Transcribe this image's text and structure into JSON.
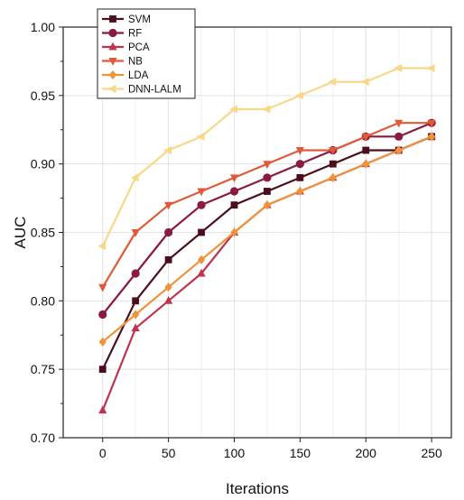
{
  "chart_data": {
    "type": "line",
    "xlabel": "Iterations",
    "ylabel": "AUC",
    "xlim": [
      -30,
      265
    ],
    "ylim": [
      0.7,
      1.0
    ],
    "xticks": [
      "0",
      "50",
      "100",
      "150",
      "200",
      "250"
    ],
    "yticks": [
      "0.70",
      "0.75",
      "0.80",
      "0.85",
      "0.90",
      "0.95",
      "1.00"
    ],
    "grid": true,
    "legend_position": "top-left",
    "x": [
      0,
      25,
      50,
      75,
      100,
      125,
      150,
      175,
      200,
      225,
      250
    ],
    "series": [
      {
        "name": "SVM",
        "marker": "square",
        "color": "#4a0e1c",
        "values": [
          0.75,
          0.8,
          0.83,
          0.85,
          0.87,
          0.88,
          0.89,
          0.9,
          0.91,
          0.91,
          0.92
        ]
      },
      {
        "name": "RF",
        "marker": "circle",
        "color": "#8b1a3c",
        "values": [
          0.79,
          0.82,
          0.85,
          0.87,
          0.88,
          0.89,
          0.9,
          0.91,
          0.92,
          0.92,
          0.93
        ]
      },
      {
        "name": "PCA",
        "marker": "triangle-up",
        "color": "#c0334d",
        "values": [
          0.72,
          0.78,
          0.8,
          0.82,
          0.85,
          0.87,
          0.88,
          0.89,
          0.9,
          0.91,
          0.92
        ]
      },
      {
        "name": "NB",
        "marker": "triangle-down",
        "color": "#e05a3a",
        "values": [
          0.81,
          0.85,
          0.87,
          0.88,
          0.89,
          0.9,
          0.91,
          0.91,
          0.92,
          0.93,
          0.93
        ]
      },
      {
        "name": "LDA",
        "marker": "diamond",
        "color": "#f0923a",
        "values": [
          0.77,
          0.79,
          0.81,
          0.83,
          0.85,
          0.87,
          0.88,
          0.89,
          0.9,
          0.91,
          0.92
        ]
      },
      {
        "name": "DNN-LALM",
        "marker": "triangle-left",
        "color": "#f8d886",
        "values": [
          0.84,
          0.89,
          0.91,
          0.92,
          0.94,
          0.94,
          0.95,
          0.96,
          0.96,
          0.97,
          0.97
        ]
      }
    ]
  }
}
